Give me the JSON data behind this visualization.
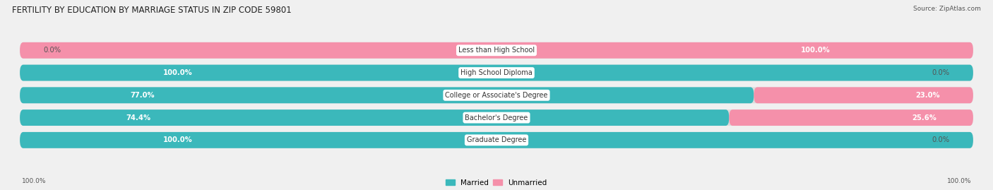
{
  "title": "FERTILITY BY EDUCATION BY MARRIAGE STATUS IN ZIP CODE 59801",
  "source": "Source: ZipAtlas.com",
  "categories": [
    "Less than High School",
    "High School Diploma",
    "College or Associate's Degree",
    "Bachelor's Degree",
    "Graduate Degree"
  ],
  "married": [
    0.0,
    100.0,
    77.0,
    74.4,
    100.0
  ],
  "unmarried": [
    100.0,
    0.0,
    23.0,
    25.6,
    0.0
  ],
  "color_married": "#3bb8bb",
  "color_unmarried": "#f590aa",
  "bg_row": "#e8e8e8",
  "title_fontsize": 8.5,
  "val_fontsize": 7.2,
  "cat_fontsize": 7.0,
  "legend_fontsize": 7.5,
  "source_fontsize": 6.5
}
